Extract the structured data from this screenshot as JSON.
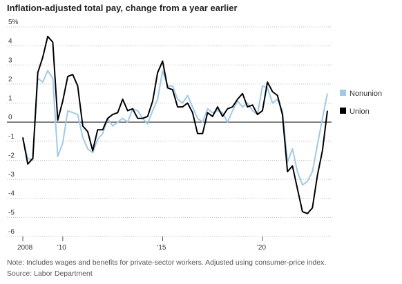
{
  "chart_data": {
    "type": "line",
    "title": "Inflation-adjusted total pay, change from a year earlier",
    "note": "Note: Includes wages and benefits for private-sector workers. Adjusted using consumer-price index.",
    "source": "Source: Labor Department",
    "x": [
      2008,
      2008.25,
      2008.5,
      2008.75,
      2009,
      2009.25,
      2009.5,
      2009.75,
      2010,
      2010.25,
      2010.5,
      2010.75,
      2011,
      2011.25,
      2011.5,
      2011.75,
      2012,
      2012.25,
      2012.5,
      2012.75,
      2013,
      2013.25,
      2013.5,
      2013.75,
      2014,
      2014.25,
      2014.5,
      2014.75,
      2015,
      2015.25,
      2015.5,
      2015.75,
      2016,
      2016.25,
      2016.5,
      2016.75,
      2017,
      2017.25,
      2017.5,
      2017.75,
      2018,
      2018.25,
      2018.5,
      2018.75,
      2019,
      2019.25,
      2019.5,
      2019.75,
      2020,
      2020.25,
      2020.5,
      2020.75,
      2021,
      2021.25,
      2021.5,
      2021.75,
      2022,
      2022.25,
      2022.5,
      2022.75,
      2023,
      2023.25
    ],
    "series": [
      {
        "name": "Nonunion",
        "color": "#9ecae8",
        "values": [
          -0.9,
          -1.9,
          -2.0,
          2.3,
          2.1,
          2.7,
          2.3,
          -1.8,
          -1.1,
          0.6,
          0.5,
          0.4,
          -0.8,
          -1.4,
          -1.6,
          -0.9,
          -0.6,
          0.2,
          -0.2,
          0.0,
          0.2,
          0.0,
          0.7,
          0.6,
          0.2,
          -0.1,
          0.6,
          1.2,
          2.7,
          1.9,
          1.9,
          1.2,
          1.0,
          1.4,
          0.8,
          0.2,
          0.0,
          0.7,
          0.5,
          0.6,
          0.5,
          0.0,
          0.6,
          1.1,
          0.8,
          1.0,
          0.6,
          0.4,
          1.9,
          1.8,
          1.0,
          1.2,
          0.6,
          -2.1,
          -1.4,
          -2.6,
          -3.3,
          -3.1,
          -2.6,
          -1.2,
          0.2,
          1.5
        ]
      },
      {
        "name": "Union",
        "color": "#000000",
        "values": [
          -0.8,
          -2.2,
          -1.9,
          2.6,
          3.4,
          4.5,
          4.2,
          0.1,
          1.1,
          2.4,
          2.5,
          1.9,
          -0.2,
          -0.5,
          -1.5,
          -0.4,
          -0.4,
          0.2,
          0.4,
          0.5,
          1.2,
          0.6,
          0.7,
          0.2,
          0.2,
          0.3,
          1.1,
          2.6,
          3.2,
          1.8,
          1.7,
          0.8,
          0.8,
          1.0,
          0.5,
          -0.6,
          -0.6,
          0.5,
          0.3,
          0.8,
          0.3,
          0.7,
          0.8,
          1.2,
          1.5,
          0.8,
          0.9,
          0.4,
          0.6,
          2.1,
          1.6,
          1.4,
          0.4,
          -2.6,
          -2.3,
          -3.5,
          -4.7,
          -4.8,
          -4.5,
          -2.8,
          -1.5,
          0.6
        ]
      }
    ],
    "xlim": [
      2008,
      2023.25
    ],
    "xticks": [
      {
        "value": 2008,
        "label": "2008"
      },
      {
        "value": 2010,
        "label": "'10"
      },
      {
        "value": 2015,
        "label": "'15"
      },
      {
        "value": 2020,
        "label": "'20"
      }
    ],
    "ylim": [
      -6,
      5
    ],
    "yticks": [
      {
        "value": 5,
        "label": "5%"
      },
      4,
      3,
      2,
      1,
      0,
      -1,
      -2,
      -3,
      -4,
      -5,
      -6
    ],
    "grid": true
  }
}
